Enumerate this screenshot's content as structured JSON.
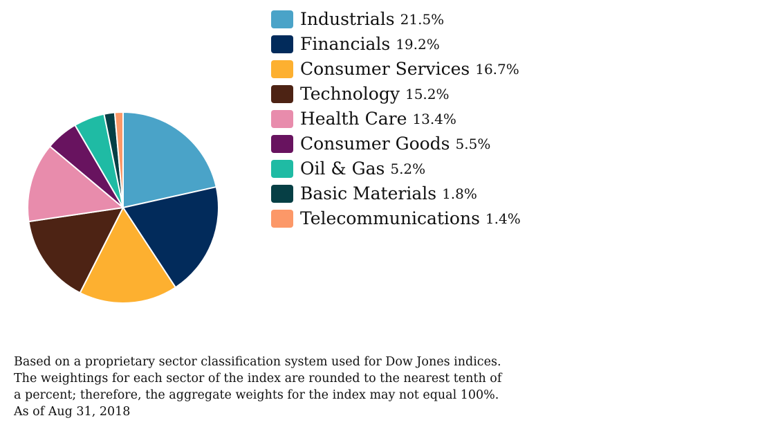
{
  "chart_data": {
    "type": "pie",
    "slices": [
      {
        "label": "Industrials",
        "value": 21.5,
        "value_label": "21.5%",
        "color": "#4aa3c8"
      },
      {
        "label": "Financials",
        "value": 19.2,
        "value_label": "19.2%",
        "color": "#022b5b"
      },
      {
        "label": "Consumer Services",
        "value": 16.7,
        "value_label": "16.7%",
        "color": "#fdb030"
      },
      {
        "label": "Technology",
        "value": 15.2,
        "value_label": "15.2%",
        "color": "#4d2314"
      },
      {
        "label": "Health Care",
        "value": 13.4,
        "value_label": "13.4%",
        "color": "#e88cac"
      },
      {
        "label": "Consumer Goods",
        "value": 5.5,
        "value_label": "5.5%",
        "color": "#68135f"
      },
      {
        "label": "Oil & Gas",
        "value": 5.2,
        "value_label": "5.2%",
        "color": "#1fbba4"
      },
      {
        "label": "Basic Materials",
        "value": 1.8,
        "value_label": "1.8%",
        "color": "#063f45"
      },
      {
        "label": "Telecommunications",
        "value": 1.4,
        "value_label": "1.4%",
        "color": "#fc9868"
      }
    ],
    "start_angle": "12 o'clock",
    "direction": "clockwise",
    "legend_position": "right"
  },
  "footnote": {
    "lines": [
      "Based on a proprietary sector classification system used for Dow Jones indices.",
      "The weightings for each sector of the index are rounded to the nearest tenth of",
      "a percent; therefore, the aggregate weights for the index may not equal 100%.",
      "As of Aug 31, 2018"
    ]
  }
}
